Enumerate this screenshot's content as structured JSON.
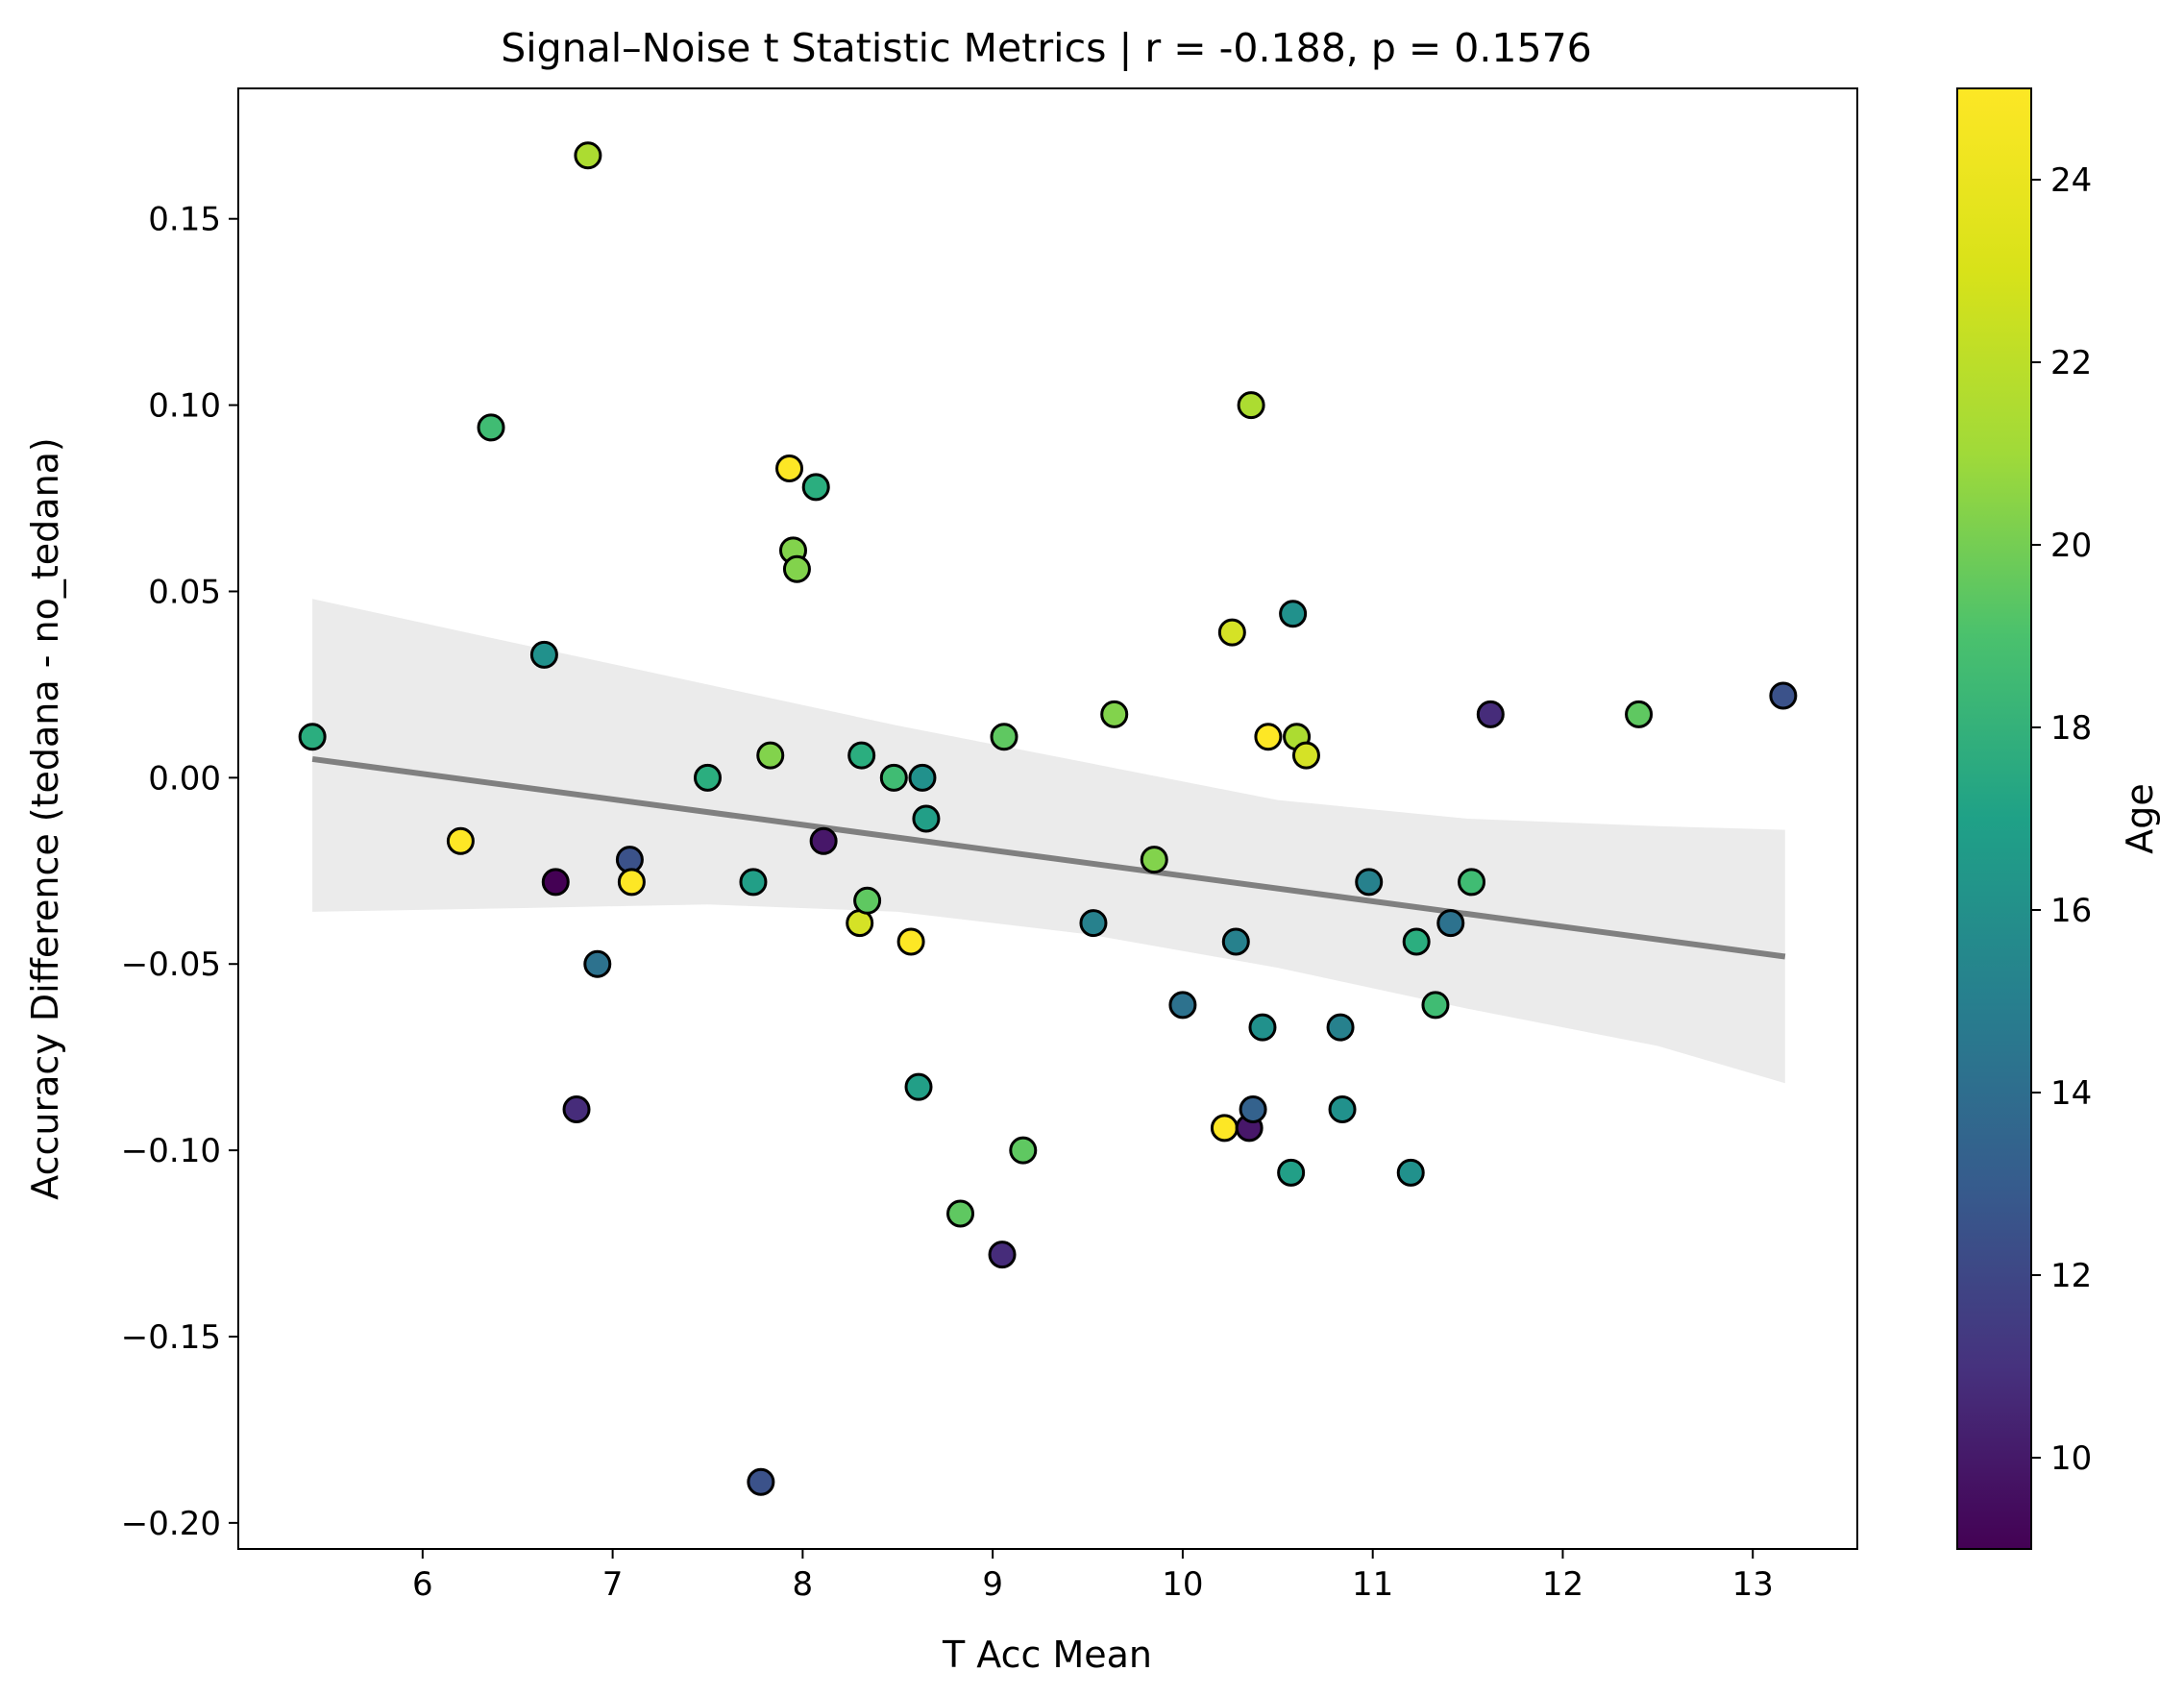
{
  "chart_data": {
    "type": "scatter",
    "title": "Signal–Noise t Statistic Metrics | r = -0.188, p = 0.1576",
    "xlabel": "T Acc Mean",
    "ylabel": "Accuracy Difference (tedana - no_tedana)",
    "xlim": [
      5.03,
      13.55
    ],
    "ylim": [
      -0.207,
      0.185
    ],
    "xticks": [
      6,
      7,
      8,
      9,
      10,
      11,
      12,
      13
    ],
    "xtick_labels": [
      "6",
      "7",
      "8",
      "9",
      "10",
      "11",
      "12",
      "13"
    ],
    "yticks": [
      -0.2,
      -0.15,
      -0.1,
      -0.05,
      0.0,
      0.05,
      0.1,
      0.15
    ],
    "ytick_labels": [
      "−0.20",
      "−0.15",
      "−0.10",
      "−0.05",
      "0.00",
      "0.05",
      "0.10",
      "0.15"
    ],
    "colorbar": {
      "label": "Age",
      "colormap": "viridis",
      "range": [
        9,
        25
      ],
      "ticks": [
        10,
        12,
        14,
        16,
        18,
        20,
        22,
        24
      ],
      "tick_labels": [
        "10",
        "12",
        "14",
        "16",
        "18",
        "20",
        "22",
        "24"
      ]
    },
    "regression": {
      "x": [
        5.42,
        13.17
      ],
      "y": [
        0.005,
        -0.048
      ],
      "color": "#808080",
      "ci_color": "#ebebeb",
      "ci_upper": [
        [
          5.42,
          0.048
        ],
        [
          6.5,
          0.036
        ],
        [
          7.5,
          0.025
        ],
        [
          8.5,
          0.014
        ],
        [
          9.5,
          0.004
        ],
        [
          10.5,
          -0.006
        ],
        [
          11.5,
          -0.011
        ],
        [
          12.5,
          -0.013
        ],
        [
          13.17,
          -0.014
        ]
      ],
      "ci_lower": [
        [
          5.42,
          -0.036
        ],
        [
          6.5,
          -0.035
        ],
        [
          7.5,
          -0.034
        ],
        [
          8.5,
          -0.036
        ],
        [
          9.5,
          -0.042
        ],
        [
          10.5,
          -0.051
        ],
        [
          11.5,
          -0.062
        ],
        [
          12.5,
          -0.072
        ],
        [
          13.17,
          -0.082
        ]
      ]
    },
    "points": [
      {
        "x": 5.42,
        "y": 0.011,
        "age": 19
      },
      {
        "x": 6.2,
        "y": -0.017,
        "age": 25
      },
      {
        "x": 6.36,
        "y": 0.094,
        "age": 20
      },
      {
        "x": 6.64,
        "y": 0.033,
        "age": 17
      },
      {
        "x": 6.7,
        "y": -0.028,
        "age": 9
      },
      {
        "x": 6.81,
        "y": -0.089,
        "age": 11
      },
      {
        "x": 6.87,
        "y": 0.167,
        "age": 23
      },
      {
        "x": 6.92,
        "y": -0.05,
        "age": 15
      },
      {
        "x": 7.09,
        "y": -0.022,
        "age": 13
      },
      {
        "x": 7.1,
        "y": -0.028,
        "age": 25
      },
      {
        "x": 7.5,
        "y": 0.0,
        "age": 19
      },
      {
        "x": 7.74,
        "y": -0.028,
        "age": 18
      },
      {
        "x": 7.78,
        "y": -0.189,
        "age": 13
      },
      {
        "x": 7.83,
        "y": 0.006,
        "age": 22
      },
      {
        "x": 7.93,
        "y": 0.083,
        "age": 25
      },
      {
        "x": 7.95,
        "y": 0.061,
        "age": 22
      },
      {
        "x": 7.97,
        "y": 0.056,
        "age": 22
      },
      {
        "x": 8.07,
        "y": 0.078,
        "age": 19
      },
      {
        "x": 8.11,
        "y": -0.017,
        "age": 10
      },
      {
        "x": 8.3,
        "y": -0.039,
        "age": 24
      },
      {
        "x": 8.31,
        "y": 0.006,
        "age": 19
      },
      {
        "x": 8.34,
        "y": -0.033,
        "age": 21
      },
      {
        "x": 8.48,
        "y": 0.0,
        "age": 20
      },
      {
        "x": 8.57,
        "y": -0.044,
        "age": 25
      },
      {
        "x": 8.61,
        "y": -0.083,
        "age": 18
      },
      {
        "x": 8.63,
        "y": 0.0,
        "age": 17
      },
      {
        "x": 8.65,
        "y": -0.011,
        "age": 18
      },
      {
        "x": 8.83,
        "y": -0.117,
        "age": 21
      },
      {
        "x": 9.05,
        "y": -0.128,
        "age": 11
      },
      {
        "x": 9.06,
        "y": 0.011,
        "age": 21
      },
      {
        "x": 9.16,
        "y": -0.1,
        "age": 21
      },
      {
        "x": 9.53,
        "y": -0.039,
        "age": 16
      },
      {
        "x": 9.64,
        "y": 0.017,
        "age": 22
      },
      {
        "x": 9.85,
        "y": -0.022,
        "age": 22
      },
      {
        "x": 10.0,
        "y": -0.061,
        "age": 15
      },
      {
        "x": 10.22,
        "y": -0.094,
        "age": 25
      },
      {
        "x": 10.26,
        "y": 0.039,
        "age": 24
      },
      {
        "x": 10.28,
        "y": -0.044,
        "age": 16
      },
      {
        "x": 10.35,
        "y": -0.094,
        "age": 10
      },
      {
        "x": 10.36,
        "y": 0.1,
        "age": 23
      },
      {
        "x": 10.37,
        "y": -0.089,
        "age": 14
      },
      {
        "x": 10.42,
        "y": -0.067,
        "age": 17
      },
      {
        "x": 10.45,
        "y": 0.011,
        "age": 25
      },
      {
        "x": 10.57,
        "y": -0.106,
        "age": 18
      },
      {
        "x": 10.58,
        "y": 0.044,
        "age": 17
      },
      {
        "x": 10.6,
        "y": 0.011,
        "age": 23
      },
      {
        "x": 10.65,
        "y": 0.006,
        "age": 24
      },
      {
        "x": 10.83,
        "y": -0.067,
        "age": 16
      },
      {
        "x": 10.84,
        "y": -0.089,
        "age": 17
      },
      {
        "x": 10.98,
        "y": -0.028,
        "age": 16
      },
      {
        "x": 11.2,
        "y": -0.106,
        "age": 17
      },
      {
        "x": 11.23,
        "y": -0.044,
        "age": 19
      },
      {
        "x": 11.33,
        "y": -0.061,
        "age": 20
      },
      {
        "x": 11.41,
        "y": -0.039,
        "age": 15
      },
      {
        "x": 11.52,
        "y": -0.028,
        "age": 20
      },
      {
        "x": 11.62,
        "y": 0.017,
        "age": 11
      },
      {
        "x": 12.4,
        "y": 0.017,
        "age": 21
      },
      {
        "x": 13.16,
        "y": 0.022,
        "age": 13
      }
    ]
  }
}
